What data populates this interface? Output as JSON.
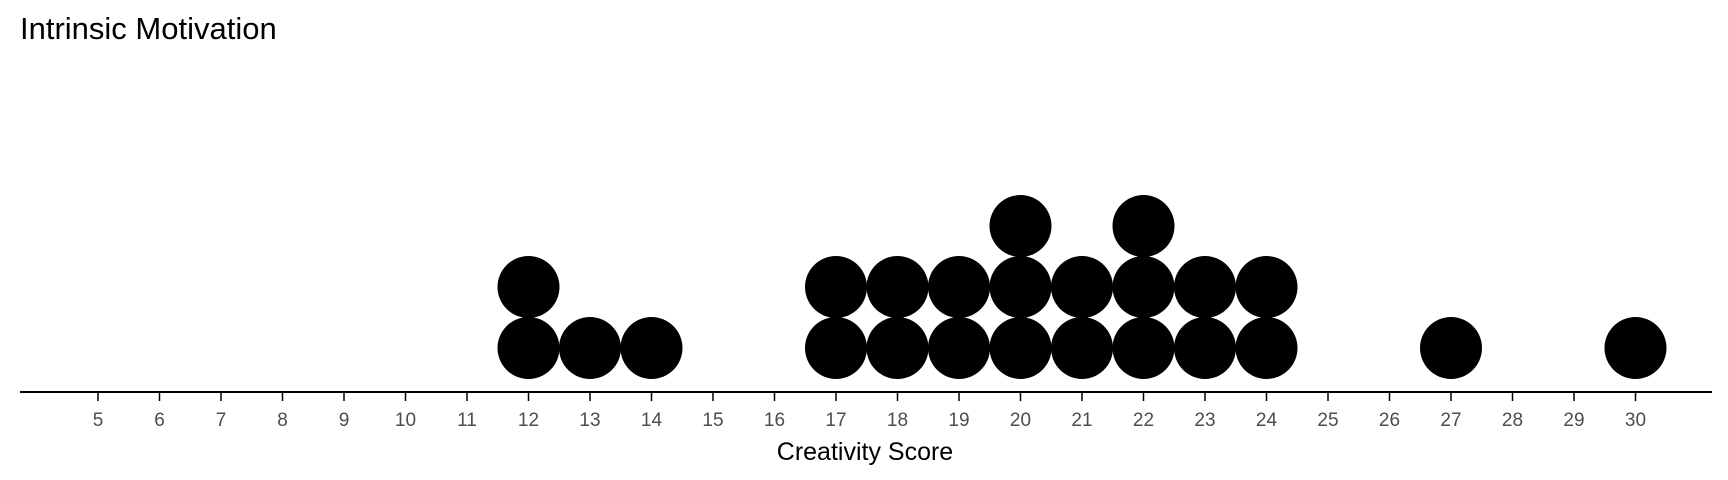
{
  "chart_data": {
    "type": "dotplot",
    "title": "Intrinsic Motivation",
    "xlabel": "Creativity Score",
    "ylabel": "",
    "xlim": [
      5,
      30
    ],
    "xticks": [
      5,
      6,
      7,
      8,
      9,
      10,
      11,
      12,
      13,
      14,
      15,
      16,
      17,
      18,
      19,
      20,
      21,
      22,
      23,
      24,
      25,
      26,
      27,
      28,
      29,
      30
    ],
    "bins": [
      {
        "x": 12,
        "count": 2
      },
      {
        "x": 13,
        "count": 1
      },
      {
        "x": 14,
        "count": 1
      },
      {
        "x": 17,
        "count": 2
      },
      {
        "x": 18,
        "count": 2
      },
      {
        "x": 19,
        "count": 2
      },
      {
        "x": 20,
        "count": 3
      },
      {
        "x": 21,
        "count": 2
      },
      {
        "x": 22,
        "count": 3
      },
      {
        "x": 23,
        "count": 2
      },
      {
        "x": 24,
        "count": 2
      },
      {
        "x": 27,
        "count": 1
      },
      {
        "x": 30,
        "count": 1
      }
    ],
    "grid": false,
    "dot_color": "#000000",
    "axis_color": "#000000",
    "tick_label_color": "#4d4d4d"
  }
}
